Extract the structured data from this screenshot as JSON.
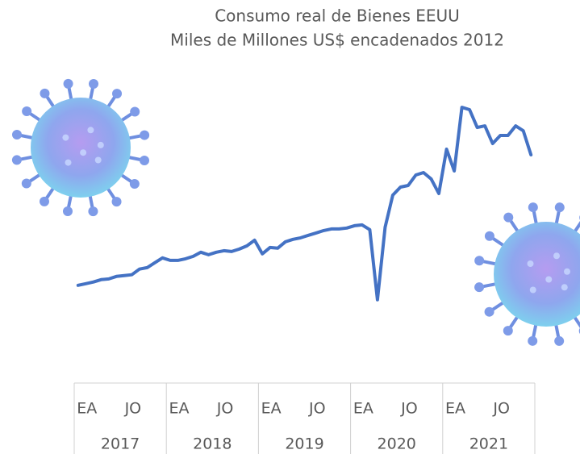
{
  "chart_data": {
    "type": "line",
    "title": "Consumo real de Bienes EEUU",
    "subtitle": "Miles de Millones US$ encadenados 2012",
    "categories": [
      "EA",
      null,
      null,
      null,
      null,
      null,
      "JO",
      null,
      null,
      null,
      null,
      null,
      "EA",
      null,
      null,
      null,
      null,
      null,
      "JO",
      null,
      null,
      null,
      null,
      null,
      "EA",
      null,
      null,
      null,
      null,
      null,
      "JO",
      null,
      null,
      null,
      null,
      null,
      "EA",
      null,
      null,
      null,
      null,
      null,
      "JO",
      null,
      null,
      null,
      null,
      null,
      "EA",
      null,
      null,
      null,
      null,
      null,
      "JO",
      null,
      null,
      null,
      null,
      null
    ],
    "groups": [
      "2017",
      "2018",
      "2019",
      "2020",
      "2021"
    ],
    "values": [
      4420,
      4431,
      4442,
      4458,
      4463,
      4480,
      4485,
      4491,
      4529,
      4539,
      4572,
      4605,
      4588,
      4588,
      4599,
      4615,
      4643,
      4626,
      4643,
      4653,
      4648,
      4664,
      4686,
      4724,
      4632,
      4675,
      4670,
      4713,
      4730,
      4740,
      4757,
      4773,
      4789,
      4800,
      4800,
      4806,
      4822,
      4827,
      4795,
      4322,
      4811,
      5028,
      5082,
      5093,
      5164,
      5180,
      5137,
      5039,
      5338,
      5191,
      5620,
      5604,
      5484,
      5495,
      5376,
      5430,
      5430,
      5495,
      5462,
      5300
    ],
    "color": "#4472c4",
    "ylim": [
      4060,
      5800
    ]
  }
}
